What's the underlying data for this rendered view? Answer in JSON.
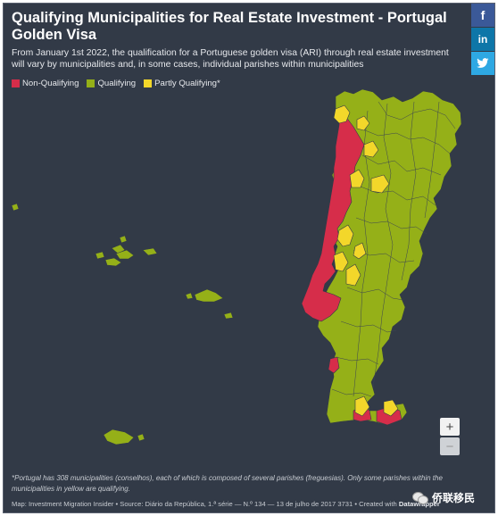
{
  "header": {
    "title": "Qualifying Municipalities for Real Estate Investment - Portugal Golden Visa",
    "subtitle": "From January 1st 2022, the qualification for a Portuguese golden visa (ARI) through real estate investment will vary by municipalities and, in some cases, individual parishes within municipalities"
  },
  "legend": [
    {
      "label": "Non-Qualifying",
      "color": "#d62d4a"
    },
    {
      "label": "Qualifying",
      "color": "#95b018"
    },
    {
      "label": "Partly Qualifying*",
      "color": "#f3d72a"
    }
  ],
  "share": {
    "facebook": "f",
    "linkedin": "in",
    "twitter": "t"
  },
  "zoom": {
    "in": "+",
    "out": "−"
  },
  "footnote": "*Portugal has 308 municipalities (conselhos), each of which is composed of several parishes (freguesias). Only some parishes within the municipalities in yellow are qualifying.",
  "source": {
    "prefix": "Map: Investment Migration Insider • Source: Diário da República, 1.ª série — N.º 134 — 13 de julho de 2017 3731 • Created with ",
    "tool": "Datawrapper"
  },
  "watermark": "侨联移民",
  "colors": {
    "background": "#323a47",
    "non_qualifying": "#d62d4a",
    "qualifying": "#95b018",
    "partly": "#f3d72a"
  }
}
